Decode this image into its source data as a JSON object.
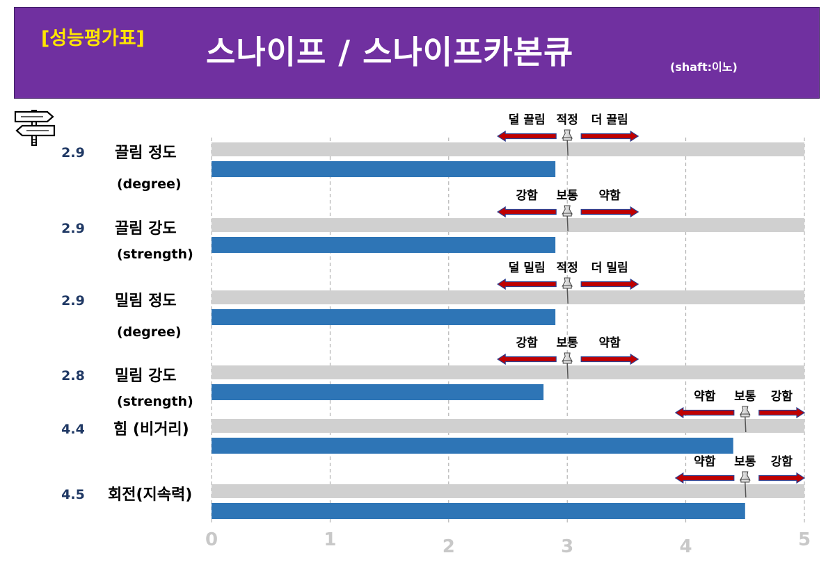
{
  "header": {
    "badge": "[성능평가표]",
    "title": "스나이프 / 스나이프카본큐",
    "subtitle": "(shaft:이노)"
  },
  "colors": {
    "header_bg": "#7030a0",
    "badge": "#ffe600",
    "bar": "#2e75b6",
    "track": "#d0d0d0",
    "arrow": "#c00000",
    "arrow_outline": "#2f3f8f",
    "score": "#1f3864",
    "tick": "#c8c8c8"
  },
  "icons": {
    "signpost": "signpost-icon",
    "pin": "pushpin-icon"
  },
  "chart_data": {
    "type": "bar",
    "orientation": "horizontal",
    "xlim": [
      0,
      5
    ],
    "xticks": [
      "0",
      "1",
      "2",
      "3",
      "4",
      "5"
    ],
    "grid": true,
    "categories": [
      {
        "score": "2.9",
        "label": "끌림 정도",
        "sub": "(degree)",
        "value": 2.9,
        "pin": 3.0,
        "scale": [
          "덜 끌림",
          "적정",
          "더 끌림"
        ]
      },
      {
        "score": "2.9",
        "label": "끌림 강도",
        "sub": "(strength)",
        "value": 2.9,
        "pin": 3.0,
        "scale": [
          "강함",
          "보통",
          "약함"
        ]
      },
      {
        "score": "2.9",
        "label": "밀림 정도",
        "sub": "(degree)",
        "value": 2.9,
        "pin": 3.0,
        "scale": [
          "덜 밀림",
          "적정",
          "더 밀림"
        ]
      },
      {
        "score": "2.8",
        "label": "밀림 강도",
        "sub": "(strength)",
        "value": 2.8,
        "pin": 3.0,
        "scale": [
          "강함",
          "보통",
          "약함"
        ]
      },
      {
        "score": "4.4",
        "label": "힘 (비거리)",
        "sub": "",
        "value": 4.4,
        "pin": 4.5,
        "scale": [
          "약함",
          "보통",
          "강함"
        ]
      },
      {
        "score": "4.5",
        "label": "회전(지속력)",
        "sub": "",
        "value": 4.5,
        "pin": 4.5,
        "scale": [
          "약함",
          "보통",
          "강함"
        ]
      }
    ]
  }
}
